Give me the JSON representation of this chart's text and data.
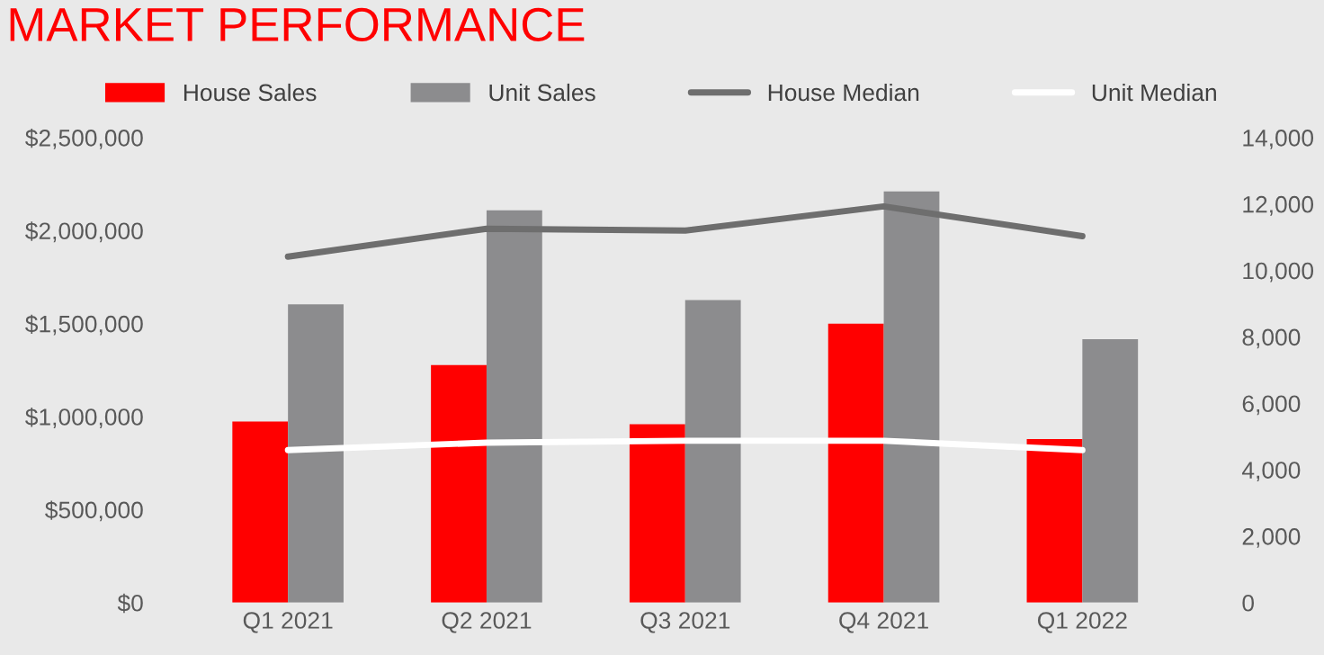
{
  "chart_data": {
    "type": "bar",
    "title": "MARKET PERFORMANCE",
    "categories": [
      "Q1 2021",
      "Q2 2021",
      "Q3 2021",
      "Q4 2021",
      "Q1 2022"
    ],
    "series": [
      {
        "name": "House Sales",
        "color": "#ff0000",
        "axis": "y2",
        "values": [
          5450,
          7150,
          5370,
          8400,
          4920
        ]
      },
      {
        "name": "Unit Sales",
        "color": "#8c8c8e",
        "axis": "y2",
        "values": [
          8980,
          11810,
          9110,
          12380,
          7930
        ]
      },
      {
        "name": "House Median",
        "color": "#6e6e6e",
        "type": "line",
        "values": [
          1860000,
          2010000,
          2000000,
          2130000,
          1970000
        ]
      },
      {
        "name": "Unit Median",
        "color": "#ffffff",
        "type": "line",
        "values": [
          820000,
          860000,
          870000,
          870000,
          820000
        ]
      }
    ],
    "ylim": [
      0,
      2500000
    ],
    "yticks": [
      {
        "value": 0,
        "label": "$0"
      },
      {
        "value": 500000,
        "label": "$500,000"
      },
      {
        "value": 1000000,
        "label": "$1,000,000"
      },
      {
        "value": 1500000,
        "label": "$1,500,000"
      },
      {
        "value": 2000000,
        "label": "$2,000,000"
      },
      {
        "value": 2500000,
        "label": "$2,500,000"
      }
    ],
    "y2lim": [
      0,
      14000
    ],
    "y2ticks": [
      {
        "value": 0,
        "label": "0"
      },
      {
        "value": 2000,
        "label": "2,000"
      },
      {
        "value": 4000,
        "label": "4,000"
      },
      {
        "value": 6000,
        "label": "6,000"
      },
      {
        "value": 8000,
        "label": "8,000"
      },
      {
        "value": 10000,
        "label": "10,000"
      },
      {
        "value": 12000,
        "label": "12,000"
      },
      {
        "value": 14000,
        "label": "14,000"
      }
    ],
    "legend": "top",
    "grid": false
  }
}
